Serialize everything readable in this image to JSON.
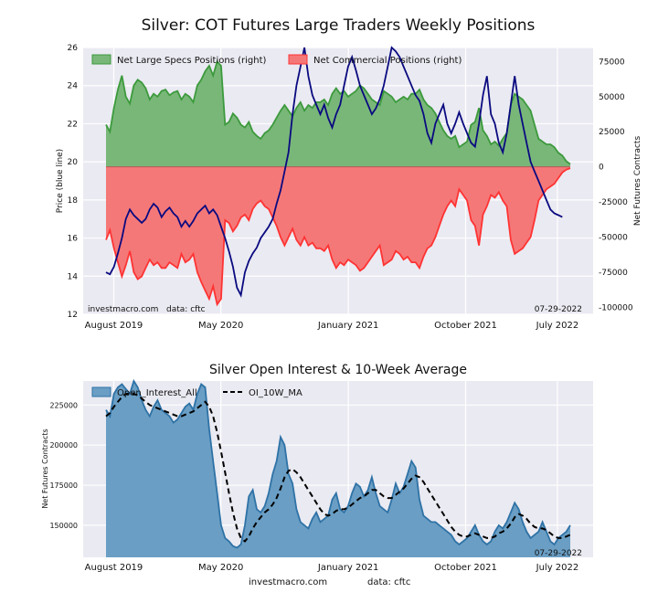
{
  "chart_data": [
    {
      "type": "area+line",
      "title": "Silver: COT Futures Large Traders Weekly Positions",
      "ylabel_left": "Price (blue line)",
      "ylabel_right": "Net Futures Contracts",
      "left_ylim": [
        12,
        26
      ],
      "right_ylim": [
        -105000,
        85000
      ],
      "left_ticks": [
        "12",
        "14",
        "16",
        "18",
        "20",
        "22",
        "24",
        "26"
      ],
      "right_ticks": [
        "75000",
        "50000",
        "25000",
        "0",
        "-25000",
        "-50000",
        "-75000",
        "-100000"
      ],
      "x_tick_labels": [
        "August 2019",
        "May 2020",
        "January 2021",
        "October 2021",
        "July 2022"
      ],
      "legend": [
        "Net Large Specs Positions (right)",
        "Net Commercial Positions (right)"
      ],
      "colors": {
        "specs": "#3c9a3c",
        "specs_fill": "#79b779",
        "comm": "#ff3333",
        "comm_fill": "#f57878",
        "price": "#0a0a80"
      },
      "watermark_left": "investmacro.com   data: cftc",
      "watermark_right": "07-29-2022",
      "series": [
        {
          "name": "Net Large Specs Positions (right)",
          "values": [
            30000,
            25000,
            42000,
            55000,
            65000,
            50000,
            45000,
            58000,
            62000,
            60000,
            56000,
            48000,
            52000,
            50000,
            54000,
            55000,
            51000,
            53000,
            54000,
            48000,
            52000,
            50000,
            46000,
            58000,
            62000,
            68000,
            72000,
            65000,
            75000,
            72000,
            30000,
            32000,
            38000,
            35000,
            30000,
            28000,
            32000,
            25000,
            22000,
            20000,
            24000,
            26000,
            30000,
            35000,
            40000,
            44000,
            40000,
            36000,
            42000,
            46000,
            40000,
            44000,
            42000,
            46000,
            46000,
            48000,
            44000,
            52000,
            56000,
            52000,
            54000,
            50000,
            52000,
            54000,
            58000,
            56000,
            52000,
            48000,
            46000,
            44000,
            54000,
            52000,
            50000,
            46000,
            48000,
            50000,
            48000,
            52000,
            52000,
            55000,
            48000,
            44000,
            42000,
            38000,
            32000,
            26000,
            22000,
            20000,
            22000,
            14000,
            16000,
            18000,
            30000,
            32000,
            42000,
            26000,
            22000,
            16000,
            18000,
            15000,
            20000,
            24000,
            44000,
            52000,
            50000,
            48000,
            44000,
            40000,
            30000,
            20000,
            18000,
            16000,
            16000,
            14000,
            10000,
            8000,
            4000,
            2000
          ]
        },
        {
          "name": "Net Commercial Positions (right)",
          "values": [
            -52000,
            -45000,
            -58000,
            -68000,
            -78000,
            -70000,
            -60000,
            -75000,
            -80000,
            -78000,
            -72000,
            -66000,
            -70000,
            -68000,
            -72000,
            -72000,
            -68000,
            -70000,
            -72000,
            -62000,
            -68000,
            -66000,
            -62000,
            -75000,
            -82000,
            -88000,
            -94000,
            -85000,
            -98000,
            -94000,
            -38000,
            -40000,
            -46000,
            -42000,
            -36000,
            -34000,
            -38000,
            -30000,
            -26000,
            -24000,
            -28000,
            -30000,
            -36000,
            -42000,
            -50000,
            -56000,
            -50000,
            -44000,
            -52000,
            -56000,
            -50000,
            -56000,
            -54000,
            -58000,
            -58000,
            -60000,
            -56000,
            -66000,
            -72000,
            -68000,
            -70000,
            -66000,
            -68000,
            -70000,
            -74000,
            -72000,
            -68000,
            -64000,
            -60000,
            -56000,
            -70000,
            -68000,
            -66000,
            -60000,
            -62000,
            -66000,
            -64000,
            -68000,
            -68000,
            -72000,
            -64000,
            -58000,
            -56000,
            -50000,
            -42000,
            -34000,
            -28000,
            -24000,
            -28000,
            -16000,
            -20000,
            -24000,
            -38000,
            -42000,
            -56000,
            -34000,
            -28000,
            -20000,
            -22000,
            -18000,
            -24000,
            -28000,
            -52000,
            -62000,
            -60000,
            -58000,
            -54000,
            -50000,
            -38000,
            -24000,
            -20000,
            -16000,
            -14000,
            -12000,
            -8000,
            -4000,
            -2000,
            -1000
          ]
        },
        {
          "name": "Price (blue line)",
          "values": [
            14.2,
            14.1,
            14.5,
            15.2,
            16.0,
            17.0,
            17.5,
            17.2,
            17.0,
            16.8,
            17.0,
            17.5,
            17.8,
            17.6,
            17.1,
            17.4,
            17.6,
            17.3,
            17.1,
            16.6,
            16.9,
            16.6,
            16.9,
            17.3,
            17.5,
            17.7,
            17.3,
            17.5,
            17.2,
            16.6,
            16.0,
            15.3,
            14.5,
            13.4,
            13.0,
            14.2,
            14.8,
            15.2,
            15.5,
            16.0,
            16.3,
            16.6,
            17.0,
            17.8,
            18.5,
            19.5,
            20.5,
            22.5,
            24.0,
            25.0,
            26.0,
            24.5,
            23.5,
            23.0,
            22.5,
            23.0,
            22.3,
            21.8,
            22.5,
            23.0,
            24.0,
            25.0,
            25.5,
            24.8,
            24.0,
            23.5,
            23.0,
            22.5,
            22.8,
            23.3,
            24.0,
            25.0,
            26.0,
            25.8,
            25.5,
            25.0,
            24.5,
            24.0,
            23.5,
            23.2,
            22.5,
            21.5,
            21.0,
            22.0,
            22.5,
            23.0,
            22.0,
            21.5,
            22.0,
            22.6,
            22.0,
            21.5,
            21.0,
            20.8,
            22.0,
            23.5,
            24.5,
            22.5,
            22.0,
            21.0,
            20.5,
            21.5,
            23.0,
            24.5,
            23.0,
            22.0,
            21.0,
            20.0,
            19.5,
            19.0,
            18.5,
            18.0,
            17.5,
            17.3,
            17.2,
            17.1
          ]
        }
      ]
    },
    {
      "type": "area+line",
      "title": "Silver Open Interest & 10-Week Average",
      "ylabel_left": "Net Futures Contracts",
      "left_ylim": [
        130000,
        240000
      ],
      "left_ticks": [
        "150000",
        "175000",
        "200000",
        "225000"
      ],
      "x_tick_labels": [
        "August 2019",
        "May 2020",
        "January 2021",
        "October 2021",
        "July 2022"
      ],
      "legend": [
        "Open_Interest_All",
        "OI_10W_MA"
      ],
      "colors": {
        "oi_fill": "#6a9ec4",
        "oi_line": "#2e72a6",
        "ma": "#000000"
      },
      "watermark_right": "07-29-2022",
      "series": [
        {
          "name": "Open_Interest_All",
          "values": [
            222000,
            218000,
            232000,
            236000,
            238000,
            235000,
            232000,
            240000,
            236000,
            228000,
            222000,
            218000,
            224000,
            228000,
            222000,
            220000,
            218000,
            214000,
            216000,
            220000,
            224000,
            226000,
            222000,
            232000,
            238000,
            236000,
            210000,
            190000,
            170000,
            150000,
            142000,
            140000,
            137000,
            136000,
            138000,
            150000,
            168000,
            172000,
            160000,
            158000,
            162000,
            170000,
            182000,
            190000,
            205000,
            200000,
            182000,
            176000,
            160000,
            152000,
            150000,
            148000,
            154000,
            158000,
            152000,
            154000,
            156000,
            166000,
            170000,
            160000,
            158000,
            162000,
            170000,
            176000,
            174000,
            168000,
            172000,
            180000,
            170000,
            162000,
            160000,
            158000,
            166000,
            176000,
            170000,
            174000,
            182000,
            190000,
            186000,
            166000,
            156000,
            154000,
            152000,
            152000,
            150000,
            148000,
            146000,
            144000,
            140000,
            138000,
            140000,
            142000,
            146000,
            150000,
            144000,
            140000,
            138000,
            140000,
            146000,
            150000,
            148000,
            152000,
            158000,
            164000,
            160000,
            152000,
            146000,
            142000,
            144000,
            146000,
            152000,
            146000,
            140000,
            138000,
            142000,
            144000,
            146000,
            150000
          ]
        },
        {
          "name": "OI_10W_MA",
          "values": [
            218000,
            220000,
            224000,
            227000,
            230000,
            232000,
            232000,
            232000,
            231000,
            229000,
            227000,
            225000,
            224000,
            223000,
            222000,
            221000,
            220000,
            219000,
            218000,
            218000,
            219000,
            220000,
            221000,
            223000,
            225000,
            227000,
            224000,
            218000,
            208000,
            196000,
            183000,
            170000,
            158000,
            148000,
            142000,
            140000,
            143000,
            148000,
            152000,
            155000,
            158000,
            160000,
            163000,
            167000,
            173000,
            180000,
            184000,
            185000,
            183000,
            180000,
            176000,
            172000,
            168000,
            164000,
            160000,
            157000,
            156000,
            157000,
            159000,
            160000,
            160000,
            161000,
            163000,
            165000,
            167000,
            168000,
            170000,
            172000,
            172000,
            170000,
            168000,
            167000,
            167000,
            169000,
            171000,
            173000,
            176000,
            179000,
            181000,
            180000,
            177000,
            173000,
            169000,
            165000,
            161000,
            157000,
            153000,
            149000,
            146000,
            144000,
            143000,
            143000,
            144000,
            145000,
            144000,
            143000,
            142000,
            142000,
            143000,
            145000,
            146000,
            148000,
            151000,
            155000,
            157000,
            156000,
            154000,
            151000,
            149000,
            148000,
            148000,
            147000,
            145000,
            143000,
            142000,
            142000,
            143000,
            144000
          ]
        }
      ],
      "footer": [
        "investmacro.com",
        "data: cftc"
      ]
    }
  ]
}
